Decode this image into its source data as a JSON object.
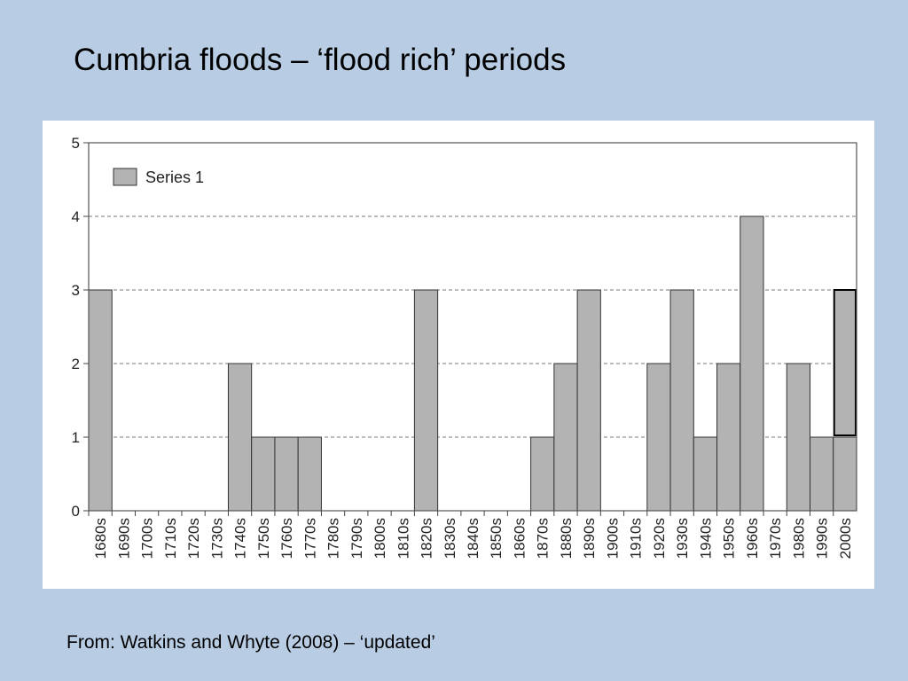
{
  "slide": {
    "title": "Cumbria floods – ‘flood rich’ periods",
    "source": "From: Watkins and Whyte (2008) – ‘updated’"
  },
  "chart_data": {
    "type": "bar",
    "categories": [
      "1680s",
      "1690s",
      "1700s",
      "1710s",
      "1720s",
      "1730s",
      "1740s",
      "1750s",
      "1760s",
      "1770s",
      "1780s",
      "1790s",
      "1800s",
      "1810s",
      "1820s",
      "1830s",
      "1840s",
      "1850s",
      "1860s",
      "1870s",
      "1880s",
      "1890s",
      "1900s",
      "1910s",
      "1920s",
      "1930s",
      "1940s",
      "1950s",
      "1960s",
      "1970s",
      "1980s",
      "1990s",
      "2000s"
    ],
    "series": [
      {
        "name": "Series 1",
        "values": [
          3,
          0,
          0,
          0,
          0,
          0,
          2,
          1,
          1,
          1,
          0,
          0,
          0,
          0,
          3,
          0,
          0,
          0,
          0,
          1,
          2,
          3,
          0,
          0,
          2,
          3,
          1,
          2,
          4,
          0,
          2,
          1,
          1
        ]
      }
    ],
    "update_overlay": {
      "category": "2000s",
      "from": 1,
      "to": 3
    },
    "ylim": [
      0,
      5
    ],
    "yticks": [
      0,
      1,
      2,
      3,
      4,
      5
    ],
    "gridlines": "dashed",
    "legend_position": "top-left",
    "bar_color": "#b3b3b3",
    "xlabel": "",
    "ylabel": ""
  }
}
